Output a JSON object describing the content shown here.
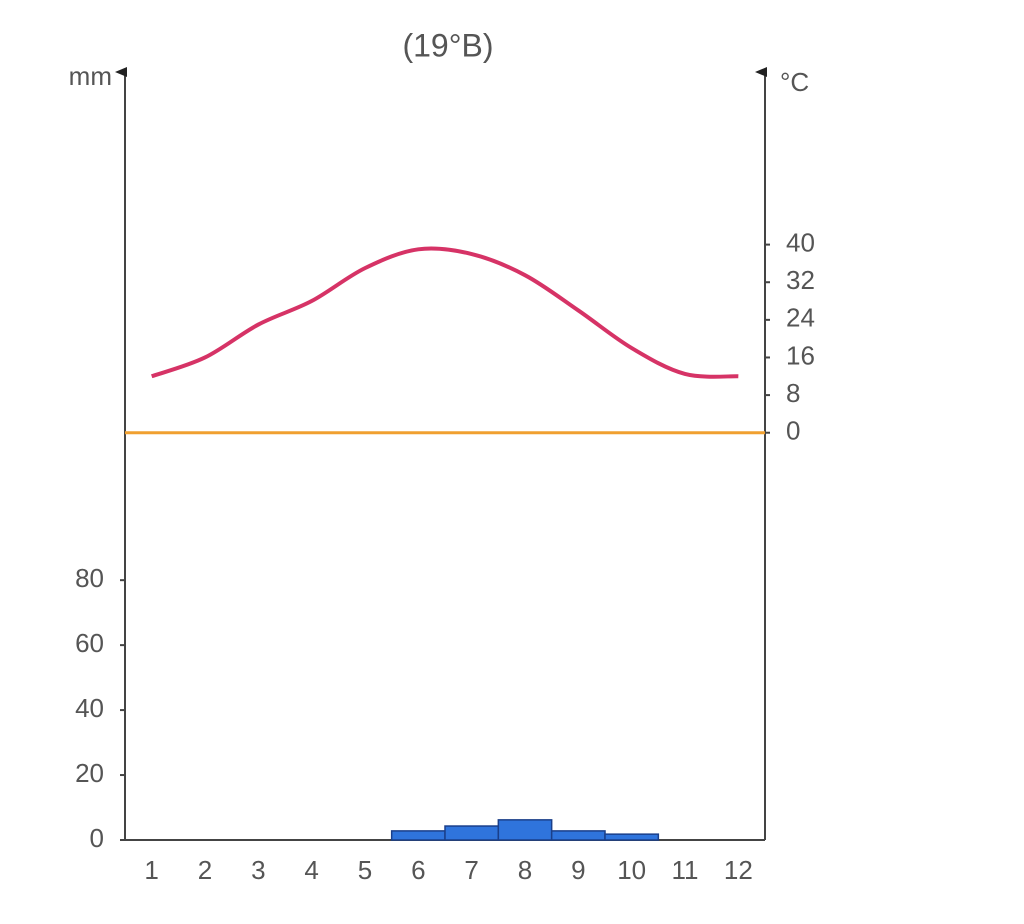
{
  "chart_data": {
    "type": "bar",
    "title": "(19°B)",
    "y_label": "mm",
    "y2_label": "°C",
    "categories": [
      "1",
      "2",
      "3",
      "4",
      "5",
      "6",
      "7",
      "8",
      "9",
      "10",
      "11",
      "12"
    ],
    "series": [
      {
        "type": "bar",
        "color": "#2f74dc",
        "values": [
          0,
          0,
          0,
          0,
          0,
          2.8,
          4.3,
          6.2,
          2.8,
          1.8,
          0,
          0
        ]
      },
      {
        "type": "line",
        "axis": "y2",
        "color": "#d63366",
        "values": [
          12,
          16,
          23,
          28,
          35,
          39,
          38,
          33.5,
          26,
          18,
          12.5,
          12
        ]
      }
    ],
    "ylim": [
      0,
      234
    ],
    "yticks": [
      0,
      20,
      40,
      60,
      80
    ],
    "y2lim": [
      -86.6,
      75
    ],
    "y2ticks": [
      0,
      8,
      16,
      24,
      32,
      40
    ],
    "zero_line_color": "#f0a030",
    "grid": false
  }
}
